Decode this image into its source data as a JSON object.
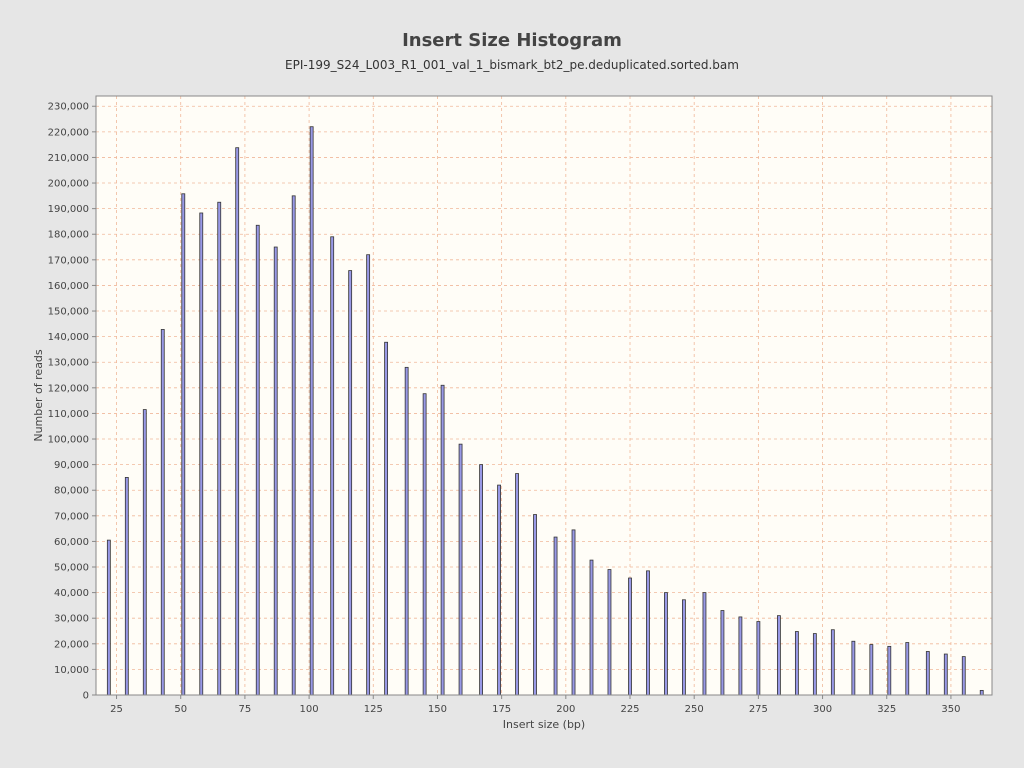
{
  "chart_data": {
    "type": "bar",
    "title": "Insert Size Histogram",
    "subtitle": "EPI-199_S24_L003_R1_001_val_1_bismark_bt2_pe.deduplicated.sorted.bam",
    "xlabel": "Insert size (bp)",
    "ylabel": "Number of reads",
    "xlim": [
      17,
      366
    ],
    "ylim": [
      0,
      234000
    ],
    "xticks": [
      25,
      50,
      75,
      100,
      125,
      150,
      175,
      200,
      225,
      250,
      275,
      300,
      325,
      350
    ],
    "yticks": [
      0,
      10000,
      20000,
      30000,
      40000,
      50000,
      60000,
      70000,
      80000,
      90000,
      100000,
      110000,
      120000,
      130000,
      140000,
      150000,
      160000,
      170000,
      180000,
      190000,
      200000,
      210000,
      220000,
      230000
    ],
    "xtick_labels": [
      "25",
      "50",
      "75",
      "100",
      "125",
      "150",
      "175",
      "200",
      "225",
      "250",
      "275",
      "300",
      "325",
      "350"
    ],
    "ytick_labels": [
      "0",
      "10,000",
      "20,000",
      "30,000",
      "40,000",
      "50,000",
      "60,000",
      "70,000",
      "80,000",
      "90,000",
      "100,000",
      "110,000",
      "120,000",
      "130,000",
      "140,000",
      "150,000",
      "160,000",
      "170,000",
      "180,000",
      "190,000",
      "200,000",
      "210,000",
      "220,000",
      "230,000"
    ],
    "grid": true,
    "bar_fill": "#9999e6",
    "bar_stroke": "#333333",
    "plot_background": "#fffdf7",
    "grid_color": "#f0b89a",
    "x": [
      22,
      29,
      36,
      43,
      51,
      58,
      65,
      72,
      80,
      87,
      94,
      101,
      109,
      116,
      123,
      130,
      138,
      145,
      152,
      159,
      167,
      174,
      181,
      188,
      196,
      203,
      210,
      217,
      225,
      232,
      239,
      246,
      254,
      261,
      268,
      275,
      283,
      290,
      297,
      304,
      312,
      319,
      326,
      333,
      341,
      348,
      355,
      362
    ],
    "values": [
      60500,
      85000,
      111500,
      142800,
      195800,
      188300,
      192500,
      213800,
      183500,
      175000,
      195000,
      222000,
      179000,
      165800,
      172000,
      137800,
      128000,
      117700,
      121000,
      98000,
      90000,
      82000,
      86500,
      70500,
      61700,
      64500,
      52700,
      49000,
      45700,
      48500,
      40000,
      37200,
      40000,
      33000,
      30500,
      28700,
      31000,
      24800,
      24000,
      25500,
      21000,
      19700,
      19000,
      20500,
      17000,
      16000,
      15000,
      1800
    ]
  }
}
